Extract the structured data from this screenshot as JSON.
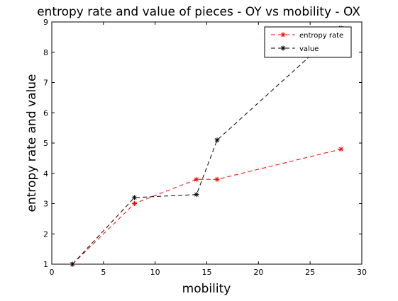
{
  "chart_data": {
    "type": "line",
    "title": "entropy rate and value of pieces - OY vs mobility - OX",
    "xlabel": "mobility",
    "ylabel": "entropy rate and value",
    "xlim": [
      0,
      30
    ],
    "ylim": [
      1,
      9
    ],
    "xticks": [
      0,
      5,
      10,
      15,
      20,
      25,
      30
    ],
    "yticks": [
      1,
      2,
      3,
      4,
      5,
      6,
      7,
      8,
      9
    ],
    "grid": false,
    "legend_position": "top-right",
    "series": [
      {
        "name": "entropy rate",
        "color": "#ff0000",
        "line_style": "dashed",
        "marker": "asterisk",
        "x": [
          2,
          8,
          14,
          16,
          28
        ],
        "y": [
          1,
          3.0,
          3.8,
          3.8,
          4.8
        ]
      },
      {
        "name": "value",
        "color": "#000000",
        "line_style": "dashed",
        "marker": "asterisk",
        "x": [
          2,
          8,
          14,
          16,
          28
        ],
        "y": [
          1,
          3.2,
          3.3,
          5.1,
          8.8
        ]
      }
    ]
  }
}
